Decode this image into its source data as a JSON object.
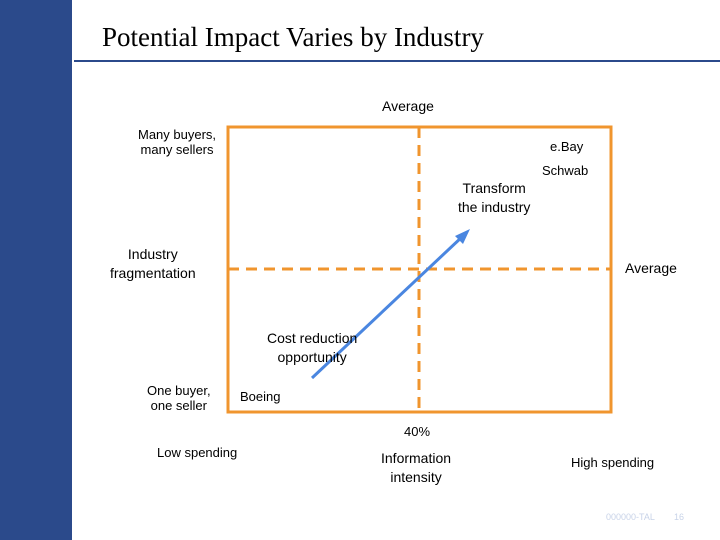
{
  "title": "Potential Impact Varies by Industry",
  "labels": {
    "top_average": "Average",
    "top_left_corner": "Many buyers,\nmany sellers",
    "ebay": "e.Bay",
    "schwab": "Schwab",
    "transform": "Transform\nthe industry",
    "industry_fragmentation": "Industry\nfragmentation",
    "right_average": "Average",
    "cost_reduction": "Cost reduction\nopportunity",
    "bottom_left_corner": "One buyer,\none seller",
    "boeing": "Boeing",
    "forty_percent": "40%",
    "low_spending": "Low spending",
    "information_intensity": "Information\nintensity",
    "high_spending": "High spending"
  },
  "footer": {
    "code": "000000-TAL",
    "page": "16"
  },
  "colors": {
    "sidebar": "#2b4a8b",
    "box": "#f0952e",
    "arrow": "#4a86e0"
  }
}
